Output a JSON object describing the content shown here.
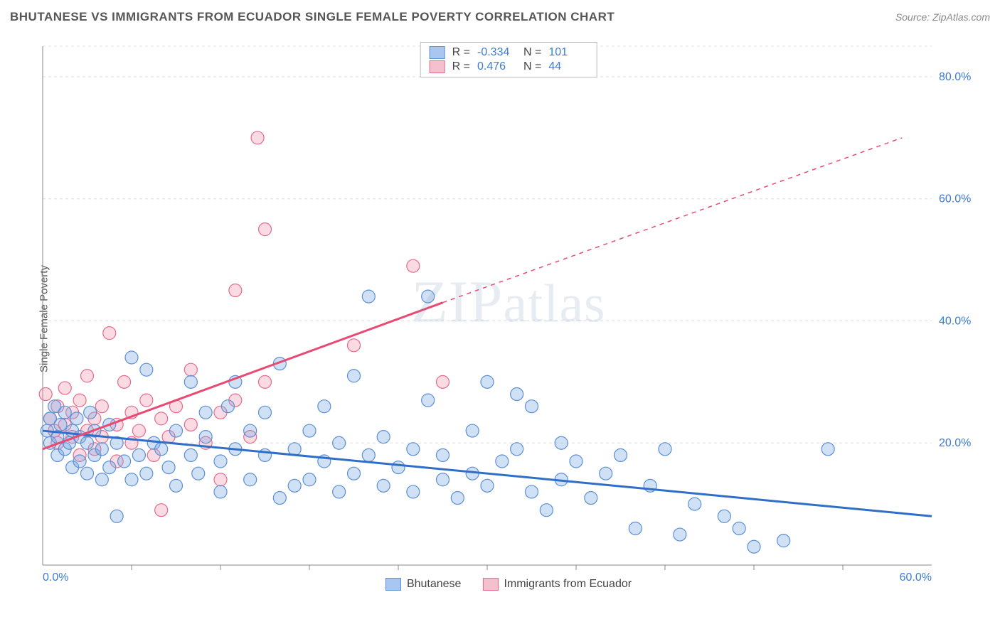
{
  "header": {
    "title": "BHUTANESE VS IMMIGRANTS FROM ECUADOR SINGLE FEMALE POVERTY CORRELATION CHART",
    "source": "Source: ZipAtlas.com"
  },
  "axes": {
    "y_label": "Single Female Poverty",
    "x_min": 0,
    "x_max": 60,
    "y_min": 0,
    "y_max": 85,
    "x_ticks": [
      0,
      60
    ],
    "x_tick_labels": [
      "0.0%",
      "60.0%"
    ],
    "x_minor_ticks": [
      6,
      12,
      18,
      24,
      30,
      36,
      42,
      48,
      54
    ],
    "y_ticks": [
      20,
      40,
      60,
      80
    ],
    "y_tick_labels": [
      "20.0%",
      "40.0%",
      "60.0%",
      "80.0%"
    ],
    "grid_color": "#dddddd",
    "axis_color": "#888888",
    "tick_label_color": "#3a7bd5",
    "tick_label_fontsize": 16
  },
  "watermark": {
    "text": "ZIPatlas"
  },
  "stats": {
    "rows": [
      {
        "swatch_fill": "#a8c6f0",
        "swatch_stroke": "#5b8fd6",
        "r": "-0.334",
        "n": "101"
      },
      {
        "swatch_fill": "#f5c0cd",
        "swatch_stroke": "#e86b8a",
        "r": "0.476",
        "n": "44"
      }
    ],
    "r_label": "R =",
    "n_label": "N ="
  },
  "legend": {
    "items": [
      {
        "label": "Bhutanese",
        "fill": "#a8c6f0",
        "stroke": "#5b8fd6"
      },
      {
        "label": "Immigrants from Ecuador",
        "fill": "#f5c0cd",
        "stroke": "#e86b8a"
      }
    ]
  },
  "series": {
    "blue": {
      "fill": "rgba(120,170,230,0.35)",
      "stroke": "#5b8fd6",
      "marker_r": 9,
      "line_color": "#2f6fc7",
      "line_width": 3,
      "trend": {
        "x1": 0,
        "y1": 22,
        "x2": 60,
        "y2": 8
      },
      "points": [
        [
          0.3,
          22
        ],
        [
          0.5,
          24
        ],
        [
          0.5,
          20
        ],
        [
          0.8,
          26
        ],
        [
          1,
          21
        ],
        [
          1,
          18
        ],
        [
          1.2,
          23
        ],
        [
          1.5,
          19
        ],
        [
          1.5,
          25
        ],
        [
          1.8,
          20
        ],
        [
          2,
          22
        ],
        [
          2,
          16
        ],
        [
          2.3,
          24
        ],
        [
          2.5,
          17
        ],
        [
          2.5,
          21
        ],
        [
          3,
          15
        ],
        [
          3,
          20
        ],
        [
          3.2,
          25
        ],
        [
          3.5,
          18
        ],
        [
          3.5,
          22
        ],
        [
          4,
          14
        ],
        [
          4,
          19
        ],
        [
          4.5,
          16
        ],
        [
          4.5,
          23
        ],
        [
          5,
          20
        ],
        [
          5,
          8
        ],
        [
          5.5,
          17
        ],
        [
          6,
          34
        ],
        [
          6,
          14
        ],
        [
          6.5,
          18
        ],
        [
          7,
          32
        ],
        [
          7,
          15
        ],
        [
          7.5,
          20
        ],
        [
          8,
          19
        ],
        [
          8.5,
          16
        ],
        [
          9,
          22
        ],
        [
          9,
          13
        ],
        [
          10,
          30
        ],
        [
          10,
          18
        ],
        [
          10.5,
          15
        ],
        [
          11,
          25
        ],
        [
          11,
          21
        ],
        [
          12,
          17
        ],
        [
          12,
          12
        ],
        [
          12.5,
          26
        ],
        [
          13,
          30
        ],
        [
          13,
          19
        ],
        [
          14,
          14
        ],
        [
          14,
          22
        ],
        [
          15,
          18
        ],
        [
          15,
          25
        ],
        [
          16,
          11
        ],
        [
          16,
          33
        ],
        [
          17,
          19
        ],
        [
          17,
          13
        ],
        [
          18,
          14
        ],
        [
          18,
          22
        ],
        [
          19,
          17
        ],
        [
          19,
          26
        ],
        [
          20,
          12
        ],
        [
          20,
          20
        ],
        [
          21,
          31
        ],
        [
          21,
          15
        ],
        [
          22,
          18
        ],
        [
          22,
          44
        ],
        [
          23,
          13
        ],
        [
          23,
          21
        ],
        [
          24,
          16
        ],
        [
          25,
          19
        ],
        [
          25,
          12
        ],
        [
          26,
          27
        ],
        [
          26,
          44
        ],
        [
          27,
          14
        ],
        [
          27,
          18
        ],
        [
          28,
          11
        ],
        [
          29,
          15
        ],
        [
          29,
          22
        ],
        [
          30,
          30
        ],
        [
          30,
          13
        ],
        [
          31,
          17
        ],
        [
          32,
          19
        ],
        [
          32,
          28
        ],
        [
          33,
          12
        ],
        [
          33,
          26
        ],
        [
          34,
          9
        ],
        [
          35,
          20
        ],
        [
          35,
          14
        ],
        [
          36,
          17
        ],
        [
          37,
          11
        ],
        [
          38,
          15
        ],
        [
          39,
          18
        ],
        [
          40,
          6
        ],
        [
          41,
          13
        ],
        [
          42,
          19
        ],
        [
          43,
          5
        ],
        [
          44,
          10
        ],
        [
          46,
          8
        ],
        [
          47,
          6
        ],
        [
          48,
          3
        ],
        [
          50,
          4
        ],
        [
          53,
          19
        ]
      ]
    },
    "pink": {
      "fill": "rgba(240,150,175,0.35)",
      "stroke": "#e86b8a",
      "marker_r": 9,
      "line_color": "#e84a73",
      "line_width": 3,
      "trend_solid": {
        "x1": 0,
        "y1": 19,
        "x2": 27,
        "y2": 43
      },
      "trend_dashed": {
        "x1": 27,
        "y1": 43,
        "x2": 58,
        "y2": 70
      },
      "points": [
        [
          0.2,
          28
        ],
        [
          0.5,
          24
        ],
        [
          0.8,
          22
        ],
        [
          1,
          26
        ],
        [
          1,
          20
        ],
        [
          1.5,
          29
        ],
        [
          1.5,
          23
        ],
        [
          2,
          25
        ],
        [
          2,
          21
        ],
        [
          2.5,
          18
        ],
        [
          2.5,
          27
        ],
        [
          3,
          22
        ],
        [
          3,
          31
        ],
        [
          3.5,
          24
        ],
        [
          3.5,
          19
        ],
        [
          4,
          26
        ],
        [
          4,
          21
        ],
        [
          4.5,
          38
        ],
        [
          5,
          23
        ],
        [
          5,
          17
        ],
        [
          5.5,
          30
        ],
        [
          6,
          20
        ],
        [
          6,
          25
        ],
        [
          6.5,
          22
        ],
        [
          7,
          27
        ],
        [
          7.5,
          18
        ],
        [
          8,
          24
        ],
        [
          8,
          9
        ],
        [
          8.5,
          21
        ],
        [
          9,
          26
        ],
        [
          10,
          23
        ],
        [
          10,
          32
        ],
        [
          11,
          20
        ],
        [
          12,
          25
        ],
        [
          12,
          14
        ],
        [
          13,
          27
        ],
        [
          13,
          45
        ],
        [
          14,
          21
        ],
        [
          14.5,
          70
        ],
        [
          15,
          30
        ],
        [
          15,
          55
        ],
        [
          21,
          36
        ],
        [
          25,
          49
        ],
        [
          27,
          30
        ]
      ]
    }
  }
}
